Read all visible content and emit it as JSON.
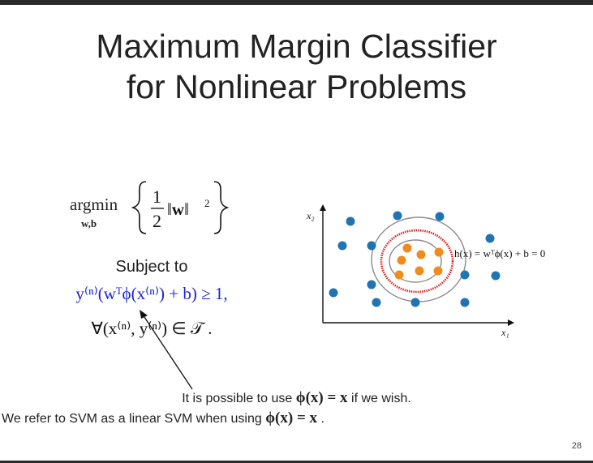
{
  "slide": {
    "title_line1": "Maximum Margin Classifier",
    "title_line2": "for Nonlinear Problems",
    "objective": {
      "operator": "argmin",
      "subscript": "w,b",
      "expression": "{ ½‖w‖² }"
    },
    "subject_to": "Subject to",
    "constraint": "y⁽ⁿ⁾(wᵀϕ(x⁽ⁿ⁾) + b) ≥ 1,",
    "forall": "∀(x⁽ⁿ⁾, y⁽ⁿ⁾) ∈ 𝒯 .",
    "note_line1_prefix": "It is possible to use",
    "note_line1_math": "ϕ(x) = x",
    "note_line1_suffix": "if we wish.",
    "note_line2_prefix": "We refer to SVM as a linear SVM when using",
    "note_line2_math": "ϕ(x) = x",
    "note_line2_suffix": ".",
    "page_number": "28"
  },
  "plot": {
    "x_axis_label": "x₁",
    "y_axis_label": "x₂",
    "boundary_label": "h(x) = wᵀϕ(x) + b = 0",
    "colors": {
      "class_a": "#1f74b4",
      "class_b": "#f08c1e",
      "boundary": "#e02020",
      "margin": "#8a8a8a"
    }
  }
}
